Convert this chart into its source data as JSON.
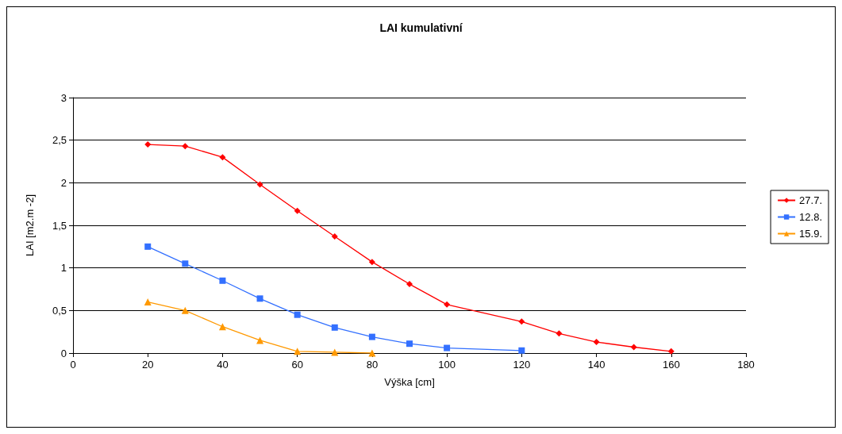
{
  "chart_data": {
    "type": "line",
    "title": "LAI kumulativní",
    "xlabel": "Výška [cm]",
    "ylabel": "LAI [m2.m -2]",
    "xlim": [
      0,
      180
    ],
    "xticks": [
      0,
      20,
      40,
      60,
      80,
      100,
      120,
      140,
      160,
      180
    ],
    "ylim": [
      0,
      3
    ],
    "yticks": [
      0,
      {
        "value": 0.5,
        "label": "0,5"
      },
      1,
      {
        "value": 1.5,
        "label": "1,5"
      },
      2,
      {
        "value": 2.5,
        "label": "2,5"
      },
      3
    ],
    "grid": "y",
    "legend": "right",
    "series": [
      {
        "name": "27.7.",
        "color": "#ff0000",
        "marker": "diamond",
        "x": [
          20,
          30,
          40,
          50,
          60,
          70,
          80,
          90,
          100,
          120,
          130,
          140,
          150,
          160
        ],
        "values": [
          2.45,
          2.43,
          2.3,
          1.98,
          1.67,
          1.37,
          1.07,
          0.81,
          0.57,
          0.37,
          0.23,
          0.13,
          0.07,
          0.02
        ]
      },
      {
        "name": "12.8.",
        "color": "#3370ff",
        "marker": "square",
        "x": [
          20,
          30,
          40,
          50,
          60,
          70,
          80,
          90,
          100,
          120
        ],
        "values": [
          1.25,
          1.05,
          0.85,
          0.64,
          0.45,
          0.3,
          0.19,
          0.11,
          0.06,
          0.03
        ]
      },
      {
        "name": "15.9.",
        "color": "#ff9900",
        "marker": "triangle",
        "x": [
          20,
          30,
          40,
          50,
          60,
          70,
          80
        ],
        "values": [
          0.6,
          0.5,
          0.31,
          0.15,
          0.02,
          0.01,
          0
        ]
      }
    ]
  }
}
